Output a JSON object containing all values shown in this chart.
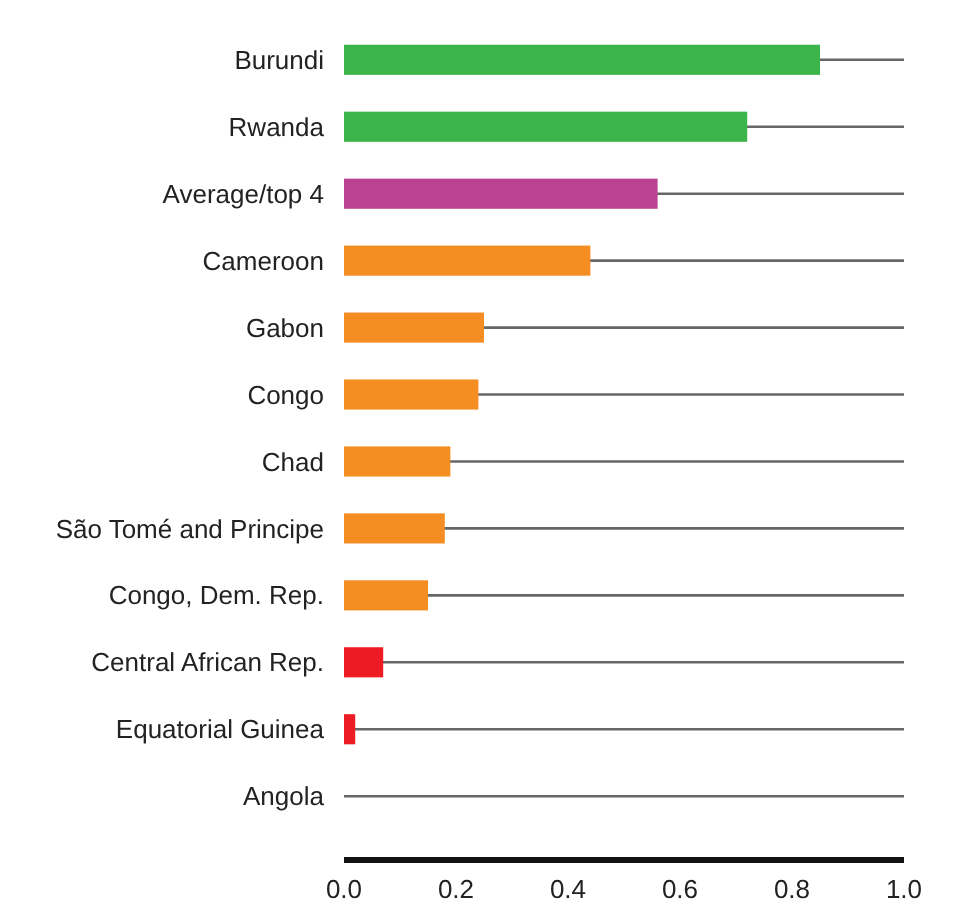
{
  "chart_data": {
    "type": "bar",
    "orientation": "horizontal",
    "categories": [
      "Burundi",
      "Rwanda",
      "Average/top 4",
      "Cameroon",
      "Gabon",
      "Congo",
      "Chad",
      "São Tomé and Principe",
      "Congo, Dem. Rep.",
      "Central African Rep.",
      "Equatorial Guinea",
      "Angola"
    ],
    "values": [
      0.85,
      0.72,
      0.56,
      0.44,
      0.25,
      0.24,
      0.19,
      0.18,
      0.15,
      0.07,
      0.02,
      0
    ],
    "colors": [
      "#3bb54a",
      "#3bb54a",
      "#bb4192",
      "#f58e22",
      "#f58e22",
      "#f58e22",
      "#f58e22",
      "#f58e22",
      "#f58e22",
      "#ed1c24",
      "#ed1c24",
      "#f58e22"
    ],
    "xlim": [
      0,
      1
    ],
    "xticks": [
      {
        "value": 0,
        "label": "0.0"
      },
      {
        "value": 0.2,
        "label": "0.2"
      },
      {
        "value": 0.4,
        "label": "0.4"
      },
      {
        "value": 0.6,
        "label": "0.6"
      },
      {
        "value": 0.8,
        "label": "0.8"
      },
      {
        "value": 1,
        "label": "1.0"
      }
    ],
    "grid": "y"
  }
}
